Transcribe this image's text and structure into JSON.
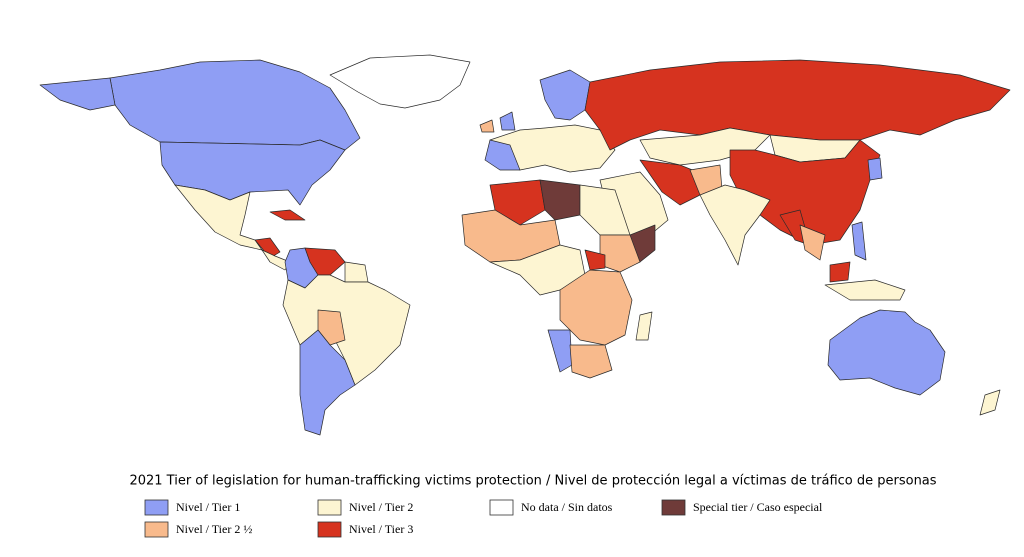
{
  "title": "2021 Tier of legislation for human-trafficking victims protection / Nivel de protección legal a víctimas de tráfico de personas",
  "legend": [
    {
      "label": "Nivel / Tier 1",
      "color": "#8f9ef4"
    },
    {
      "label": "Nivel / Tier 2",
      "color": "#fdf5d2"
    },
    {
      "label": "No data / Sin datos",
      "color": "#ffffff"
    },
    {
      "label": "Special tier / Caso especial",
      "color": "#6f3b39"
    },
    {
      "label": "Nivel / Tier 2 ½",
      "color": "#f8ba8c"
    },
    {
      "label": "Nivel / Tier 3",
      "color": "#d6331f"
    }
  ]
}
